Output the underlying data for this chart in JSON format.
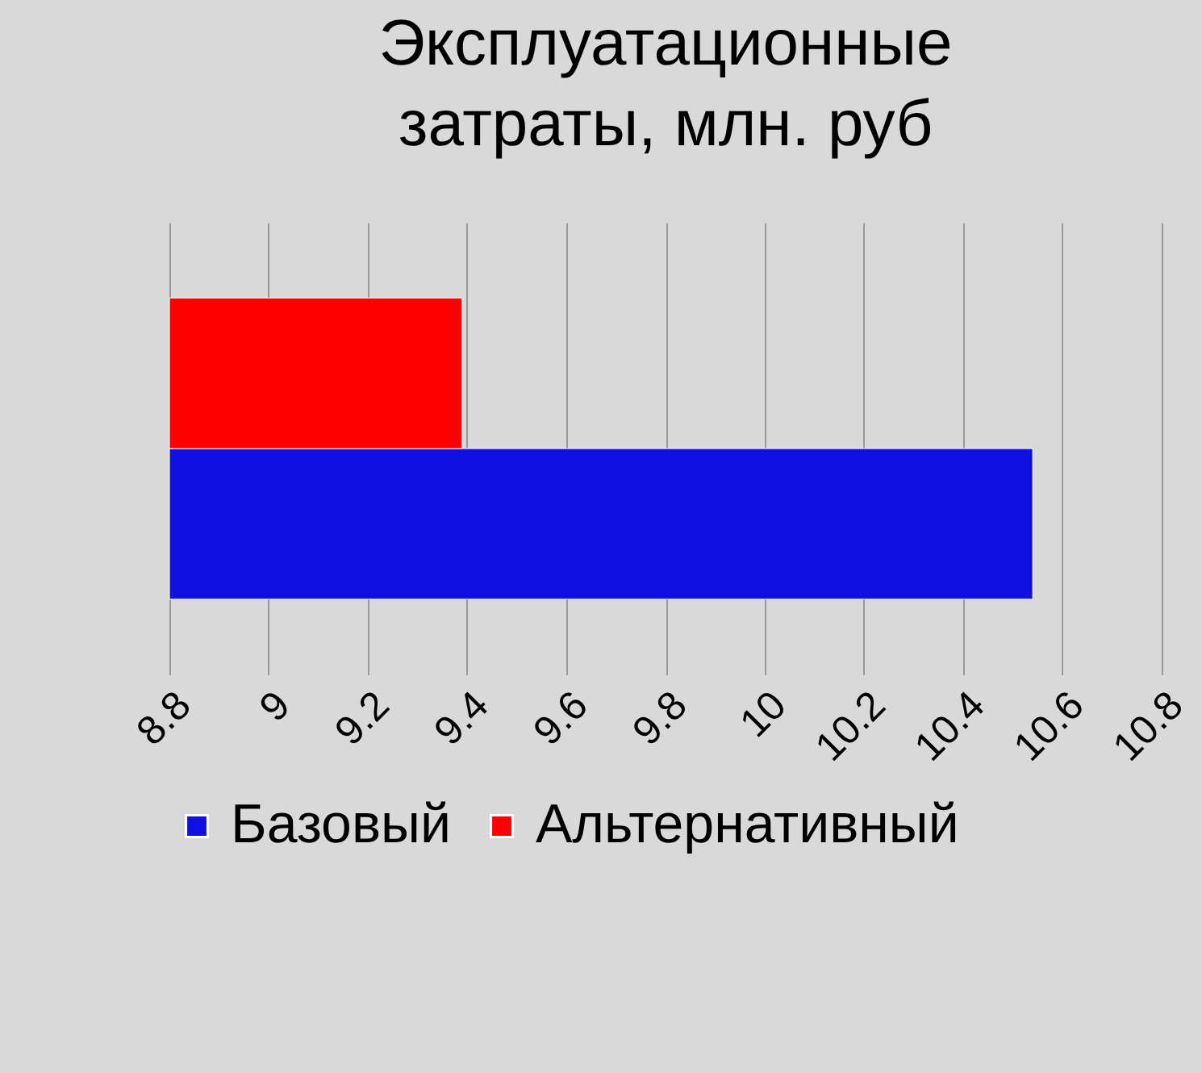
{
  "chart_data": {
    "type": "bar",
    "orientation": "horizontal",
    "title": "Эксплуатационные затраты, млн. руб",
    "categories": [
      null
    ],
    "series": [
      {
        "name": "Базовый",
        "color": "#1010e0",
        "values": [
          10.54
        ]
      },
      {
        "name": "Альтернативный",
        "color": "#ff0000",
        "values": [
          9.39
        ]
      }
    ],
    "xlim": [
      8.8,
      10.8
    ],
    "xticks": [
      8.8,
      9,
      9.2,
      9.4,
      9.6,
      9.8,
      10,
      10.2,
      10.4,
      10.6,
      10.8
    ],
    "grid": true,
    "legend": "bottom",
    "tick_labels": "x"
  }
}
